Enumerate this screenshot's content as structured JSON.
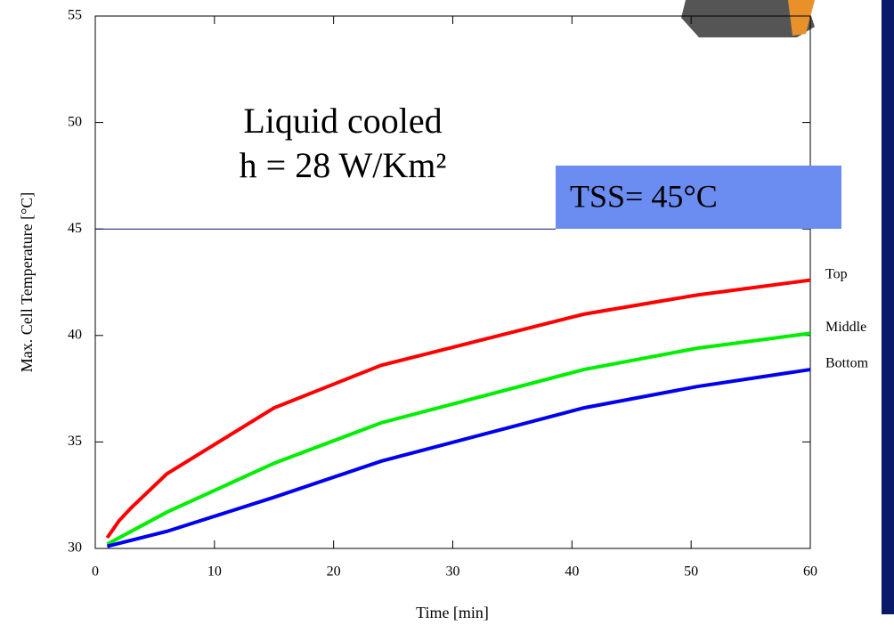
{
  "chart_data": {
    "type": "line",
    "annotations": [
      "Liquid cooled",
      "h = 28 W/Km²"
    ],
    "reference_line": {
      "value": 45,
      "label": "TSS= 45°C",
      "color": "#0a1a6a",
      "box_color": "#6b8cf0"
    },
    "x_label": "Time [min]",
    "y_label": "Max. Cell Temperature [°C]",
    "series": [
      {
        "name": "Top",
        "color": "#ff0000",
        "x": [
          1,
          2,
          3,
          6,
          15,
          24,
          41,
          50.5,
          60
        ],
        "values": [
          30.5,
          31.3,
          31.9,
          33.5,
          36.6,
          38.6,
          41,
          41.9,
          42.6
        ]
      },
      {
        "name": "Middle",
        "color": "#00ee00",
        "x": [
          1,
          6,
          15,
          24,
          41,
          50.5,
          60
        ],
        "values": [
          30.2,
          31.7,
          34,
          35.9,
          38.4,
          39.4,
          40.1
        ]
      },
      {
        "name": "Bottom",
        "color": "#0000ee",
        "x": [
          1,
          6,
          15,
          24,
          41,
          50.5,
          60
        ],
        "values": [
          30.1,
          30.8,
          32.4,
          34.1,
          36.6,
          37.6,
          38.4
        ]
      }
    ],
    "xlim": [
      0,
      60
    ],
    "xticks": [
      0,
      10,
      20,
      30,
      40,
      50,
      60
    ],
    "ylim": [
      30,
      55
    ],
    "yticks": [
      30,
      35,
      40,
      45,
      50,
      55
    ]
  }
}
